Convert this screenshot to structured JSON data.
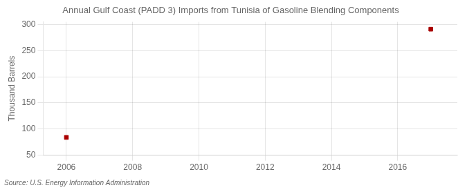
{
  "chart_data": {
    "type": "scatter",
    "title": "Annual Gulf Coast (PADD 3) Imports from Tunisia of Gasoline Blending Components",
    "ylabel": "Thousand Barrels",
    "annotations": [
      "Source: U.S. Energy Information Administration"
    ],
    "x": [
      2006,
      2017
    ],
    "values": [
      84,
      291
    ],
    "color": "#aa0000",
    "marker": "square",
    "xlim": [
      2005.3,
      2017.8
    ],
    "ylim": [
      50,
      305
    ],
    "xticks": [
      2006,
      2008,
      2010,
      2012,
      2014,
      2016
    ],
    "yticks": [
      50,
      100,
      150,
      200,
      250,
      300
    ],
    "grid": true
  }
}
